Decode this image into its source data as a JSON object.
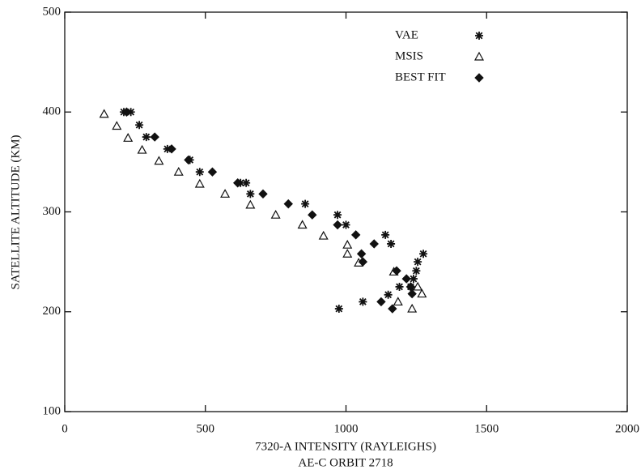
{
  "chart_data": {
    "type": "scatter",
    "xlabel": "7320-A INTENSITY (RAYLEIGHS)",
    "xlabel2": "AE-C ORBIT 2718",
    "ylabel": "SATELLITE  ALTITUDE (KM)",
    "xlim": [
      0,
      2000
    ],
    "xticks": [
      0,
      500,
      1000,
      1500,
      2000
    ],
    "ylim": [
      100,
      500
    ],
    "yticks": [
      100,
      200,
      300,
      400,
      500
    ],
    "legend": "upper right",
    "series": [
      {
        "name": "VAE",
        "marker": "asterisk",
        "color": "#111111",
        "x": [
          210,
          235,
          265,
          290,
          365,
          445,
          480,
          625,
          645,
          660,
          855,
          970,
          1000,
          1140,
          1160,
          1275,
          1255,
          1250,
          1240,
          1230,
          1190,
          1150,
          1060,
          975
        ],
        "y": [
          400,
          400,
          387,
          375,
          363,
          352,
          340,
          329,
          329,
          318,
          308,
          297,
          287,
          277,
          268,
          258,
          250,
          241,
          233,
          225,
          225,
          217,
          210,
          203
        ]
      },
      {
        "name": "MSIS",
        "marker": "triangle",
        "color": "#111111",
        "x": [
          140,
          185,
          225,
          275,
          335,
          405,
          480,
          570,
          660,
          750,
          845,
          920,
          1005,
          1005,
          1045,
          1170,
          1185,
          1235,
          1255,
          1270
        ],
        "y": [
          398,
          386,
          374,
          362,
          351,
          340,
          328,
          318,
          307,
          297,
          287,
          276,
          267,
          258,
          249,
          240,
          210,
          203,
          225,
          218
        ]
      },
      {
        "name": "BEST FIT",
        "marker": "diamond",
        "color": "#111111",
        "x": [
          220,
          320,
          380,
          440,
          525,
          615,
          705,
          795,
          880,
          970,
          1035,
          1100,
          1055,
          1060,
          1180,
          1215,
          1230,
          1235,
          1125,
          1165
        ],
        "y": [
          400,
          375,
          363,
          352,
          340,
          329,
          318,
          308,
          297,
          287,
          277,
          268,
          258,
          250,
          241,
          233,
          225,
          218,
          210,
          203
        ]
      }
    ]
  }
}
